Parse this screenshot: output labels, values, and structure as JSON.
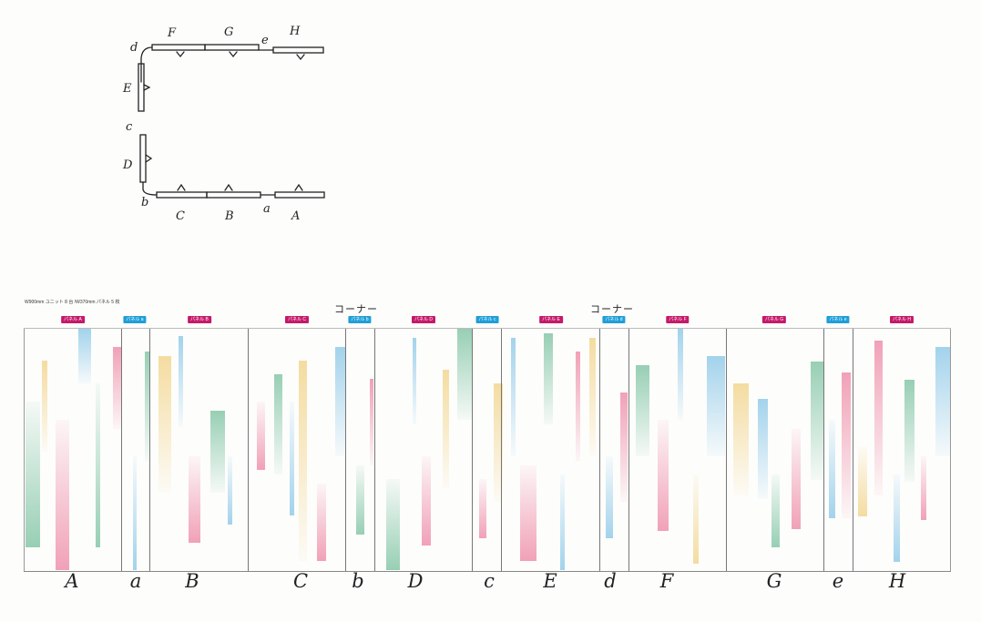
{
  "plan": {
    "labels_top": [
      "F",
      "G",
      "e",
      "H"
    ],
    "labels_left": [
      "d",
      "E",
      "c",
      "D",
      "b"
    ],
    "labels_bottom": [
      "C",
      "B",
      "a",
      "A"
    ]
  },
  "elevation": {
    "note": "W900mm ユニット 8 台 /W370mm パネル 5 枚",
    "corner_labels": [
      "コーナー",
      "コーナー"
    ],
    "panel_tags": [
      {
        "label": "パネル A",
        "kind": "main"
      },
      {
        "label": "パネル a",
        "kind": "narrow"
      },
      {
        "label": "パネル B",
        "kind": "main"
      },
      {
        "label": "パネル C",
        "kind": "main"
      },
      {
        "label": "パネル b",
        "kind": "narrow"
      },
      {
        "label": "パネル D",
        "kind": "main"
      },
      {
        "label": "パネル c",
        "kind": "narrow"
      },
      {
        "label": "パネル E",
        "kind": "main"
      },
      {
        "label": "パネル d",
        "kind": "narrow"
      },
      {
        "label": "パネル F",
        "kind": "main"
      },
      {
        "label": "パネル G",
        "kind": "main"
      },
      {
        "label": "パネル e",
        "kind": "narrow"
      },
      {
        "label": "パネル H",
        "kind": "main"
      }
    ],
    "bottom_labels": [
      "A",
      "a",
      "B",
      "C",
      "b",
      "D",
      "c",
      "E",
      "d",
      "F",
      "G",
      "e",
      "H"
    ]
  },
  "colors": {
    "main_tag": "#c41a68",
    "narrow_tag": "#1f9ed8",
    "stripe_blue": "#8cc8e8",
    "stripe_green": "#7ec3a2",
    "stripe_pink": "#ee8aa6",
    "stripe_yellow": "#f2d48a"
  }
}
